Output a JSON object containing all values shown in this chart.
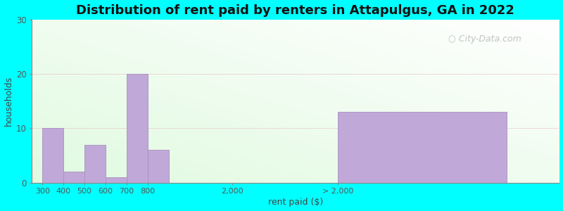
{
  "title": "Distribution of rent paid by renters in Attapulgus, GA in 2022",
  "xlabel": "rent paid ($)",
  "ylabel": "households",
  "bar_labels": [
    "300",
    "400",
    "500",
    "600",
    "700",
    "800",
    "2,000",
    "> 2,000"
  ],
  "bar_values": [
    10,
    2,
    7,
    1,
    20,
    6,
    0,
    13
  ],
  "bar_color": "#c0a8d8",
  "bar_edge_color": "#a890c0",
  "ylim": [
    0,
    30
  ],
  "yticks": [
    0,
    10,
    20,
    30
  ],
  "background_color": "#00ffff",
  "title_fontsize": 13,
  "axis_label_fontsize": 9,
  "watermark": "City-Data.com",
  "bar_lefts": [
    50,
    150,
    250,
    350,
    450,
    550,
    950,
    1450
  ],
  "bar_widths": [
    100,
    100,
    100,
    100,
    100,
    100,
    100,
    800
  ],
  "tick_positions": [
    50,
    150,
    250,
    350,
    450,
    550,
    950,
    1450
  ],
  "xlim": [
    0,
    2500
  ]
}
